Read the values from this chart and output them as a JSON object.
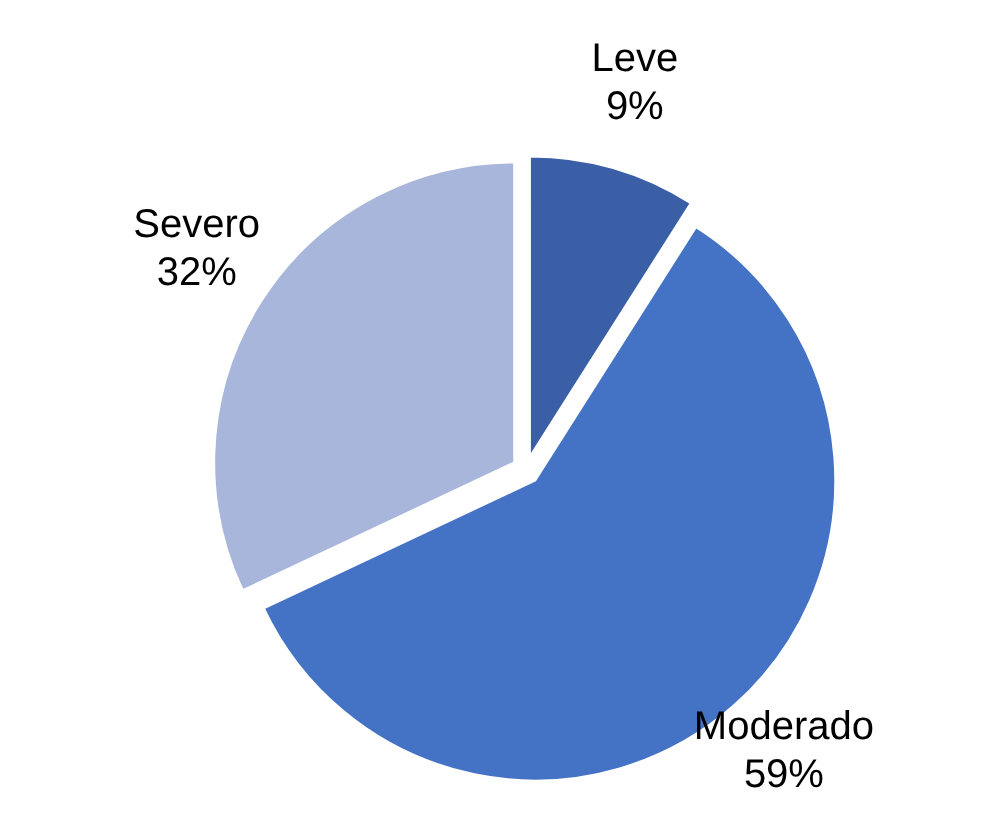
{
  "chart_data": {
    "type": "pie",
    "categories": [
      "Leve",
      "Moderado",
      "Severo"
    ],
    "values": [
      9,
      59,
      32
    ],
    "value_labels": [
      "9%",
      "59%",
      "32%"
    ],
    "colors": [
      "#3a5fa6",
      "#4472c4",
      "#a9b6dc"
    ]
  }
}
